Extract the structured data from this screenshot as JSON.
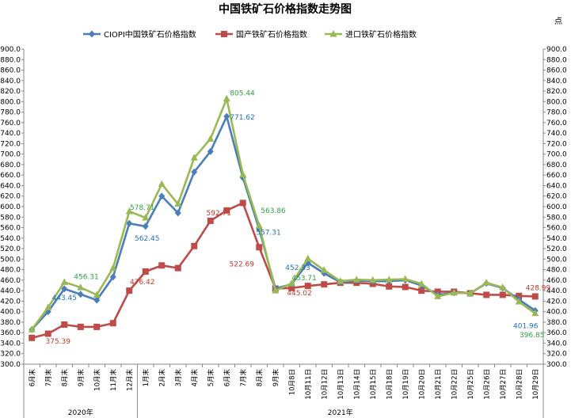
{
  "chart_data": {
    "type": "line",
    "title": "中国铁矿石价格指数走势图",
    "unit_label": "点",
    "ylim": [
      300,
      900
    ],
    "ytick_step": 20,
    "grid": false,
    "legend_position": "top",
    "categories": [
      "6月末",
      "7月末",
      "8月末",
      "9月末",
      "10月末",
      "11月末",
      "12月末",
      "1月末",
      "2月末",
      "3月末",
      "4月末",
      "5月末",
      "6月末",
      "7月末",
      "8月末",
      "9月末",
      "10月8日",
      "10月11日",
      "10月12日",
      "10月13日",
      "10月14日",
      "10月15日",
      "10月18日",
      "10月19日",
      "10月20日",
      "10月21日",
      "10月22日",
      "10月25日",
      "10月26日",
      "10月27日",
      "10月28日",
      "10月29日"
    ],
    "year_groups": [
      {
        "label": "2020年",
        "start": 0,
        "end": 6
      },
      {
        "label": "2021年",
        "start": 7,
        "end": 31
      }
    ],
    "series": [
      {
        "name": "CIOPI中国铁矿石价格指数",
        "color": "#4a7ebb",
        "marker": "diamond",
        "values": [
          366,
          400,
          443.45,
          433,
          422,
          466,
          568,
          562.45,
          620,
          588,
          666,
          705,
          771.62,
          655,
          557.31,
          444,
          452.33,
          493,
          473,
          456,
          459,
          458,
          458,
          460,
          450,
          432,
          436,
          435,
          454,
          445,
          423,
          401.96
        ]
      },
      {
        "name": "国产铁矿石价格指数",
        "color": "#be4b48",
        "marker": "square",
        "values": [
          350,
          358,
          375.39,
          371,
          371,
          378,
          440,
          476.42,
          488,
          483,
          525,
          573,
          592.71,
          607,
          522.69,
          444,
          445.02,
          449,
          452,
          455,
          455,
          453,
          448,
          447,
          440,
          438,
          438,
          435,
          432,
          432,
          430,
          428.99
        ]
      },
      {
        "name": "进口铁矿石价格指数",
        "color": "#98b954",
        "marker": "triangle",
        "values": [
          366,
          408,
          456.31,
          446,
          432,
          483,
          591,
          578.71,
          643,
          605,
          693,
          729,
          805.44,
          661,
          563.86,
          440,
          453.71,
          501,
          479,
          458,
          461,
          460,
          461,
          462,
          453,
          429,
          436,
          435,
          455,
          446,
          419,
          396.85
        ]
      }
    ],
    "annotations": [
      {
        "text": "443.45",
        "series": 0,
        "index": 2,
        "color": "#1f6fbf"
      },
      {
        "text": "456.31",
        "series": 2,
        "index": 2,
        "color": "#2ea043"
      },
      {
        "text": "375.39",
        "series": 1,
        "index": 2,
        "color": "#c0392b"
      },
      {
        "text": "578.71",
        "series": 2,
        "index": 7,
        "color": "#2ea043"
      },
      {
        "text": "562.45",
        "series": 0,
        "index": 7,
        "color": "#1f6fbf"
      },
      {
        "text": "476.42",
        "series": 1,
        "index": 7,
        "color": "#c0392b"
      },
      {
        "text": "805.44",
        "series": 2,
        "index": 12,
        "color": "#2ea043"
      },
      {
        "text": "771.62",
        "series": 0,
        "index": 12,
        "color": "#1f6fbf"
      },
      {
        "text": "592.71",
        "series": 1,
        "index": 12,
        "color": "#c0392b"
      },
      {
        "text": "522.69",
        "series": 1,
        "index": 14,
        "color": "#c0392b"
      },
      {
        "text": "563.86",
        "series": 2,
        "index": 14,
        "color": "#2ea043"
      },
      {
        "text": "557.31",
        "series": 0,
        "index": 14,
        "color": "#1f6fbf"
      },
      {
        "text": "453.71",
        "series": 2,
        "index": 16,
        "color": "#2ea043"
      },
      {
        "text": "452.33",
        "series": 0,
        "index": 16,
        "color": "#1f6fbf"
      },
      {
        "text": "445.02",
        "series": 1,
        "index": 16,
        "color": "#c0392b"
      },
      {
        "text": "428.99",
        "series": 1,
        "index": 31,
        "color": "#c0392b"
      },
      {
        "text": "401.96",
        "series": 0,
        "index": 31,
        "color": "#1f6fbf"
      },
      {
        "text": "396.85",
        "series": 2,
        "index": 31,
        "color": "#2ea043"
      }
    ]
  }
}
